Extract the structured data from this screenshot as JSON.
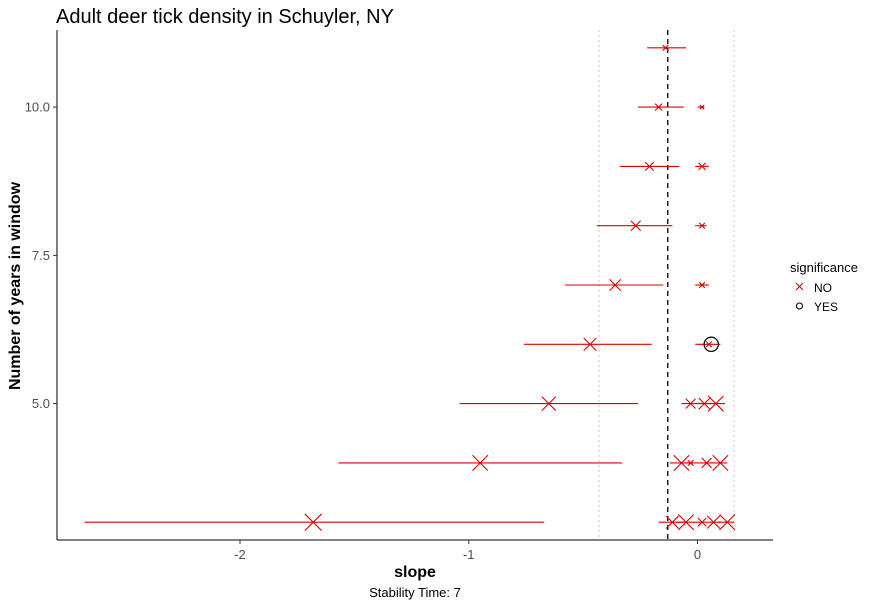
{
  "chart_data": {
    "type": "scatter",
    "title": "Adult deer tick density in Schuyler, NY",
    "xlabel": "slope",
    "ylabel": "Number of years in window",
    "caption": "Stability Time: 7",
    "xlim": [
      -2.8,
      0.33
    ],
    "ylim": [
      2.7,
      11.3
    ],
    "x_ticks": [
      -2,
      -1,
      0
    ],
    "x_tick_labels": [
      "-2",
      "-1",
      "0"
    ],
    "y_ticks": [
      5.0,
      7.5,
      10.0
    ],
    "y_tick_labels": [
      "5.0",
      "7.5",
      "10.0"
    ],
    "grid": false,
    "reference_lines": {
      "dashed_x": -0.13,
      "dotted_x": [
        -0.43,
        0.16
      ]
    },
    "colors": {
      "no": "#e00000",
      "yes": "#000000",
      "axis": "#000000",
      "dotted": "#cccccc"
    },
    "legend": {
      "title": "significance",
      "position": "right",
      "entries": [
        {
          "label": "NO",
          "shape": "x",
          "color": "#e00000"
        },
        {
          "label": "YES",
          "shape": "circle",
          "color": "#000000"
        }
      ]
    },
    "points": [
      {
        "y": 11,
        "x": -0.14,
        "lo": -0.22,
        "hi": -0.05,
        "size": 4,
        "sig": "NO"
      },
      {
        "y": 10,
        "x": -0.17,
        "lo": -0.26,
        "hi": -0.06,
        "size": 5,
        "sig": "NO"
      },
      {
        "y": 10,
        "x": 0.02,
        "lo": 0.0,
        "hi": 0.03,
        "size": 3,
        "sig": "NO"
      },
      {
        "y": 9,
        "x": -0.21,
        "lo": -0.34,
        "hi": -0.08,
        "size": 6,
        "sig": "NO"
      },
      {
        "y": 9,
        "x": 0.02,
        "lo": -0.01,
        "hi": 0.05,
        "size": 5,
        "sig": "NO"
      },
      {
        "y": 8,
        "x": -0.27,
        "lo": -0.44,
        "hi": -0.11,
        "size": 7,
        "sig": "NO"
      },
      {
        "y": 8,
        "x": 0.02,
        "lo": -0.01,
        "hi": 0.04,
        "size": 4,
        "sig": "NO"
      },
      {
        "y": 7,
        "x": -0.36,
        "lo": -0.58,
        "hi": -0.15,
        "size": 8,
        "sig": "NO"
      },
      {
        "y": 7,
        "x": 0.02,
        "lo": -0.01,
        "hi": 0.05,
        "size": 4,
        "sig": "NO"
      },
      {
        "y": 6,
        "x": -0.47,
        "lo": -0.76,
        "hi": -0.2,
        "size": 9,
        "sig": "NO"
      },
      {
        "y": 6,
        "x": 0.05,
        "lo": -0.01,
        "hi": 0.1,
        "size": 4,
        "sig": "NO"
      },
      {
        "y": 6,
        "x": 0.06,
        "lo": 0.06,
        "hi": 0.06,
        "size": 11,
        "sig": "YES"
      },
      {
        "y": 5,
        "x": -0.65,
        "lo": -1.04,
        "hi": -0.26,
        "size": 10,
        "sig": "NO"
      },
      {
        "y": 5,
        "x": -0.03,
        "lo": -0.07,
        "hi": 0.03,
        "size": 7,
        "sig": "NO"
      },
      {
        "y": 5,
        "x": 0.03,
        "lo": 0.0,
        "hi": 0.07,
        "size": 8,
        "sig": "NO"
      },
      {
        "y": 5,
        "x": 0.08,
        "lo": 0.04,
        "hi": 0.12,
        "size": 11,
        "sig": "NO"
      },
      {
        "y": 4,
        "x": -0.95,
        "lo": -1.57,
        "hi": -0.33,
        "size": 11,
        "sig": "NO"
      },
      {
        "y": 4,
        "x": -0.07,
        "lo": -0.12,
        "hi": -0.02,
        "size": 11,
        "sig": "NO"
      },
      {
        "y": 4,
        "x": -0.03,
        "lo": -0.05,
        "hi": 0.0,
        "size": 4,
        "sig": "NO"
      },
      {
        "y": 4,
        "x": 0.04,
        "lo": 0.0,
        "hi": 0.07,
        "size": 7,
        "sig": "NO"
      },
      {
        "y": 4,
        "x": 0.1,
        "lo": 0.06,
        "hi": 0.13,
        "size": 11,
        "sig": "NO"
      },
      {
        "y": 3,
        "x": -1.68,
        "lo": -2.68,
        "hi": -0.67,
        "size": 12,
        "sig": "NO"
      },
      {
        "y": 3,
        "x": -0.11,
        "lo": -0.17,
        "hi": -0.05,
        "size": 9,
        "sig": "NO"
      },
      {
        "y": 3,
        "x": -0.05,
        "lo": -0.09,
        "hi": 0.0,
        "size": 11,
        "sig": "NO"
      },
      {
        "y": 3,
        "x": 0.02,
        "lo": 0.0,
        "hi": 0.04,
        "size": 6,
        "sig": "NO"
      },
      {
        "y": 3,
        "x": 0.07,
        "lo": 0.04,
        "hi": 0.1,
        "size": 9,
        "sig": "NO"
      },
      {
        "y": 3,
        "x": 0.13,
        "lo": 0.09,
        "hi": 0.16,
        "size": 11,
        "sig": "NO"
      }
    ]
  }
}
